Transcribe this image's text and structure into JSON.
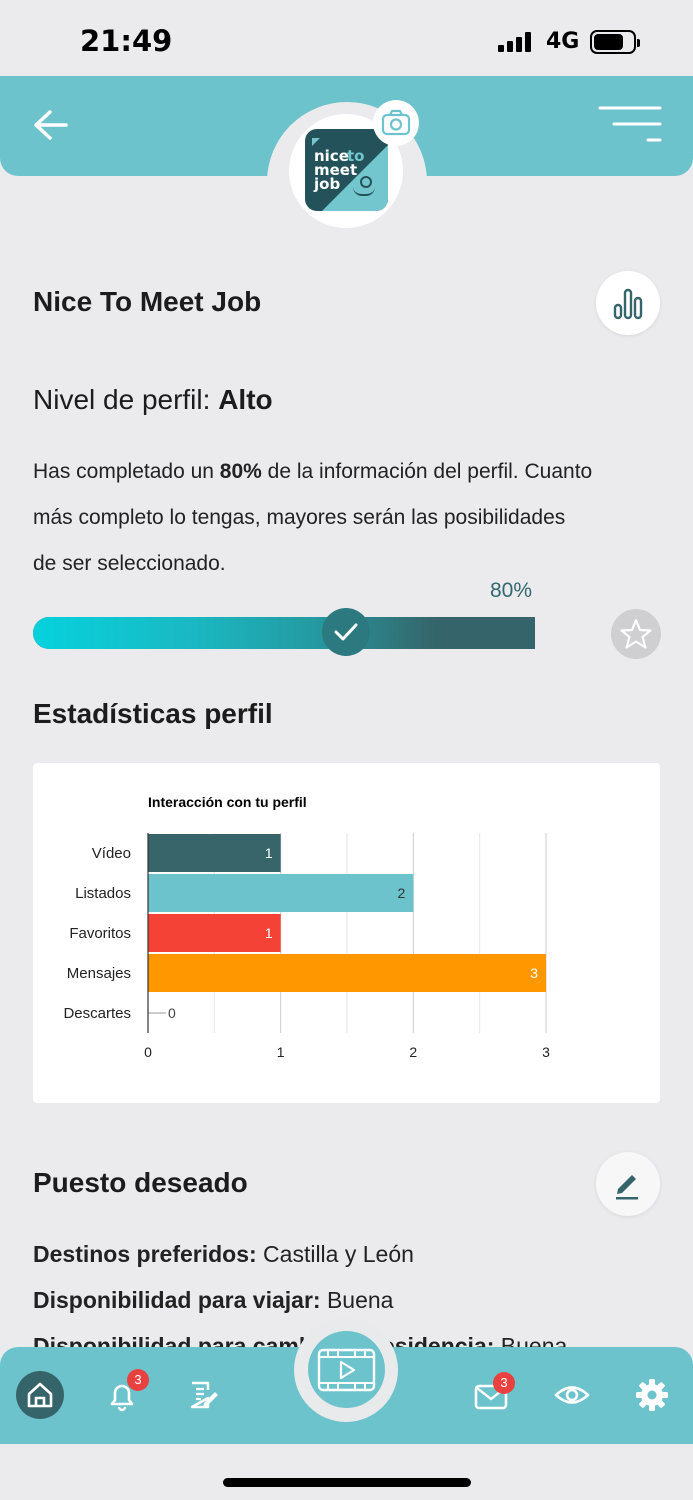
{
  "status_bar": {
    "time": "21:49",
    "network": "4G",
    "signal_bars": 4,
    "battery_level": 0.75
  },
  "header": {
    "back_icon": "arrow-left-icon",
    "menu_icon": "menu-icon",
    "camera_icon": "camera-icon",
    "logo_words": [
      "nice",
      "to",
      "meet",
      "job"
    ]
  },
  "profile": {
    "company_name": "Nice To Meet Job",
    "level_label": "Nivel de perfil:",
    "level_value": "Alto",
    "completion_text_pre": "Has completado un",
    "completion_percent": "80%",
    "completion_text_post": "de la información del perfil.",
    "completion_text_line2": "Cuanto más completo lo tengas, mayores serán las posibilidades de ser seleccionado.",
    "progress_value": 0.8
  },
  "stats_section": {
    "title": "Estadísticas perfil"
  },
  "chart_data": {
    "type": "bar",
    "orientation": "horizontal",
    "title": "Interacción con tu perfil",
    "categories": [
      "Vídeo",
      "Listados",
      "Favoritos",
      "Mensajes",
      "Descartes"
    ],
    "values": [
      1,
      2,
      1,
      3,
      0
    ],
    "data_labels": [
      "1",
      "2",
      "1",
      "3",
      "0"
    ],
    "colors": [
      "#37656a",
      "#6dc3cc",
      "#f44336",
      "#ff9800",
      "#9e9e9e"
    ],
    "xlim": [
      0,
      3
    ],
    "x_ticks": [
      "0",
      "1",
      "2",
      "3"
    ],
    "grid": true,
    "legend": "none"
  },
  "desired_job": {
    "title": "Puesto deseado",
    "rows": [
      {
        "label": "Destinos preferidos:",
        "value": "Castilla y León"
      },
      {
        "label": "Disponibilidad para viajar:",
        "value": "Buena"
      },
      {
        "label": "Disponibilidad para cambio de residencia:",
        "value": "Buena"
      }
    ]
  },
  "bottom_nav": {
    "items": [
      {
        "name": "home-icon",
        "active": true
      },
      {
        "name": "bell-icon",
        "badge": "3"
      },
      {
        "name": "document-edit-icon"
      },
      {
        "name": "video-play-icon"
      },
      {
        "name": "mail-icon",
        "badge": "3"
      },
      {
        "name": "eye-icon"
      },
      {
        "name": "gear-icon"
      }
    ]
  },
  "colors": {
    "accent": "#6dc3cc",
    "dark_teal": "#35656a",
    "background": "#ebebee",
    "badge": "#e8413f"
  }
}
